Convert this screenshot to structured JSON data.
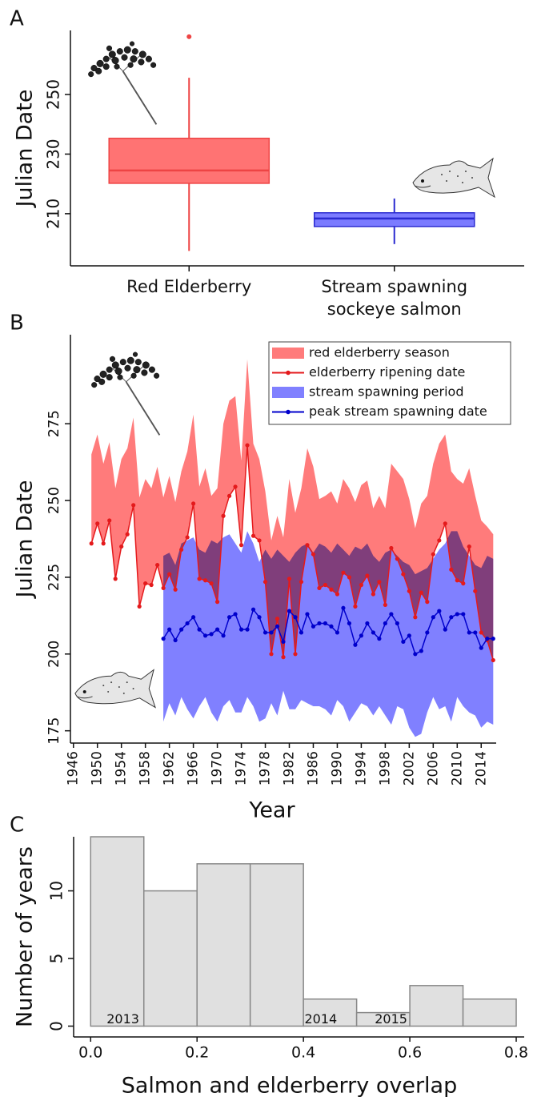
{
  "chart_data": [
    {
      "type": "box",
      "panel": "A",
      "ylabel": "Julian Date",
      "categories": [
        "Red Elderberry",
        "Stream spawning sockeye salmon"
      ],
      "colors": [
        "#ff7373",
        "#7b7bff"
      ],
      "edgecolors": [
        "#ee4444",
        "#2a2ad0"
      ],
      "boxes": [
        {
          "whislo": 197.5,
          "q1": 220.2,
          "med": 224.5,
          "q3": 235.3,
          "whishi": 255.6,
          "fliers": [
            269.4
          ]
        },
        {
          "whislo": 199.8,
          "q1": 205.7,
          "med": 208.4,
          "q3": 210.3,
          "whishi": 215.1
        }
      ],
      "ylim": [
        192.5,
        271.5
      ],
      "yticks": [
        210,
        230,
        250
      ]
    },
    {
      "type": "line",
      "panel": "B",
      "ylabel": "Julian Date",
      "xlabel": "Year",
      "legend": "upper right",
      "xlim": [
        1945.5,
        2016.5
      ],
      "xticks": [
        1946,
        1950,
        1954,
        1958,
        1962,
        1966,
        1970,
        1974,
        1978,
        1982,
        1986,
        1990,
        1994,
        1998,
        2002,
        2006,
        2010,
        2014
      ],
      "ylim": [
        171,
        304
      ],
      "yticks": [
        175,
        200,
        225,
        250,
        275
      ],
      "series": [
        {
          "name": "red elderberry season",
          "type": "area",
          "color": "#ff7b7b",
          "x": [
            1949,
            1950,
            1951,
            1952,
            1953,
            1954,
            1955,
            1956,
            1957,
            1958,
            1959,
            1960,
            1961,
            1962,
            1963,
            1964,
            1965,
            1966,
            1967,
            1968,
            1969,
            1970,
            1971,
            1972,
            1973,
            1974,
            1975,
            1976,
            1977,
            1978,
            1979,
            1980,
            1981,
            1982,
            1983,
            1984,
            1985,
            1986,
            1987,
            1988,
            1989,
            1990,
            1991,
            1992,
            1993,
            1994,
            1995,
            1996,
            1997,
            1998,
            1999,
            2000,
            2001,
            2002,
            2003,
            2004,
            2005,
            2006,
            2007,
            2008,
            2009,
            2010,
            2011,
            2012,
            2013,
            2014,
            2015,
            2016
          ],
          "low": [
            236,
            242.5,
            236,
            243.5,
            224.5,
            235,
            239,
            248.5,
            215.5,
            223,
            222.5,
            229,
            221.5,
            226,
            221,
            234,
            238,
            249,
            224.5,
            224,
            223,
            217,
            245,
            251.5,
            254.5,
            235.5,
            268,
            238.5,
            237,
            223.5,
            200,
            211.5,
            199,
            224.5,
            200,
            223.5,
            235.5,
            232.5,
            221.5,
            222.5,
            221,
            219.5,
            226.5,
            225,
            215.5,
            222.5,
            225.5,
            219.5,
            223.5,
            216,
            234.5,
            231,
            226,
            220.5,
            212,
            220,
            217,
            232.5,
            237,
            242.5,
            227.5,
            224,
            223,
            235,
            220.5,
            207,
            204.5,
            198
          ],
          "high": [
            265,
            271.5,
            262,
            269,
            254,
            263.5,
            267,
            277,
            251,
            257,
            254,
            261,
            251,
            258,
            249.5,
            259.5,
            266,
            278,
            254.5,
            260.5,
            251.5,
            254,
            275,
            282.5,
            284,
            263,
            296,
            268.5,
            263.5,
            253,
            237,
            245,
            238,
            257,
            246,
            254,
            267,
            261,
            250.5,
            251.5,
            253,
            249,
            257,
            254,
            249.5,
            255,
            256.5,
            247.5,
            251.5,
            247.5,
            262,
            259.5,
            257,
            250.5,
            241,
            249,
            251.5,
            262,
            268.5,
            271.5,
            259.5,
            257,
            255.5,
            260.5,
            251.5,
            243.5,
            241.5,
            239
          ]
        },
        {
          "name": "elderberry ripening date",
          "type": "line",
          "color": "#e41a1c",
          "x": [
            1949,
            1950,
            1951,
            1952,
            1953,
            1954,
            1955,
            1956,
            1957,
            1958,
            1959,
            1960,
            1961,
            1962,
            1963,
            1964,
            1965,
            1966,
            1967,
            1968,
            1969,
            1970,
            1971,
            1972,
            1973,
            1974,
            1975,
            1976,
            1977,
            1978,
            1979,
            1980,
            1981,
            1982,
            1983,
            1984,
            1985,
            1986,
            1987,
            1988,
            1989,
            1990,
            1991,
            1992,
            1993,
            1994,
            1995,
            1996,
            1997,
            1998,
            1999,
            2000,
            2001,
            2002,
            2003,
            2004,
            2005,
            2006,
            2007,
            2008,
            2009,
            2010,
            2011,
            2012,
            2013,
            2014,
            2015,
            2016
          ],
          "values": [
            236,
            242.5,
            236,
            243.5,
            224.5,
            235,
            239,
            248.5,
            215.5,
            223,
            222.5,
            229,
            221.5,
            226,
            221,
            234,
            238,
            249,
            224.5,
            224,
            223,
            217,
            245,
            251.5,
            254.5,
            235.5,
            268,
            238.5,
            237,
            223.5,
            200,
            211.5,
            199,
            224.5,
            200,
            223.5,
            235.5,
            232.5,
            221.5,
            222.5,
            221,
            219.5,
            226.5,
            225,
            215.5,
            222.5,
            225.5,
            219.5,
            223.5,
            216,
            234.5,
            231,
            226,
            220.5,
            212,
            220,
            217,
            232.5,
            237,
            242.5,
            227.5,
            224,
            223,
            235,
            220.5,
            207,
            204.5,
            198
          ]
        },
        {
          "name": "stream spawning period",
          "type": "area",
          "color": "#8080ff",
          "x": [
            1961,
            1962,
            1963,
            1964,
            1965,
            1966,
            1967,
            1968,
            1969,
            1970,
            1971,
            1972,
            1973,
            1974,
            1975,
            1976,
            1977,
            1978,
            1979,
            1980,
            1981,
            1982,
            1983,
            1984,
            1985,
            1986,
            1987,
            1988,
            1989,
            1990,
            1991,
            1992,
            1993,
            1994,
            1995,
            1996,
            1997,
            1998,
            1999,
            2000,
            2001,
            2002,
            2003,
            2004,
            2005,
            2006,
            2007,
            2008,
            2009,
            2010,
            2011,
            2012,
            2013,
            2014,
            2015,
            2016
          ],
          "low": [
            178,
            184,
            180,
            186,
            182,
            179,
            183,
            186,
            181,
            178,
            183,
            185,
            181,
            181,
            186,
            183,
            178,
            179,
            184,
            180,
            188,
            182,
            182,
            185,
            184,
            183,
            183,
            182,
            180,
            185,
            183,
            178,
            181,
            184,
            183,
            180,
            183,
            180,
            177,
            183,
            182,
            176,
            173,
            174,
            181,
            186,
            182,
            183,
            178,
            186,
            183,
            181,
            180,
            176,
            178,
            177
          ],
          "high": [
            232,
            233,
            229,
            236,
            237,
            238,
            234,
            233,
            237,
            236,
            238,
            239,
            236,
            233,
            240,
            236,
            230,
            234,
            231,
            234,
            232,
            230,
            233,
            235,
            236,
            233,
            236,
            235,
            233,
            236,
            234,
            232,
            235,
            234,
            236,
            232,
            230,
            233,
            234,
            232,
            230,
            229,
            226,
            227,
            228,
            231,
            234,
            236,
            240,
            240,
            235,
            232,
            229,
            228,
            232,
            231
          ]
        },
        {
          "name": "peak stream spawning date",
          "type": "line",
          "color": "#0000cc",
          "x": [
            1961,
            1962,
            1963,
            1964,
            1965,
            1966,
            1967,
            1968,
            1969,
            1970,
            1971,
            1972,
            1973,
            1974,
            1975,
            1976,
            1977,
            1978,
            1979,
            1980,
            1981,
            1982,
            1983,
            1984,
            1985,
            1986,
            1987,
            1988,
            1989,
            1990,
            1991,
            1992,
            1993,
            1994,
            1995,
            1996,
            1997,
            1998,
            1999,
            2000,
            2001,
            2002,
            2003,
            2004,
            2005,
            2006,
            2007,
            2008,
            2009,
            2010,
            2011,
            2012,
            2013,
            2014,
            2015,
            2016
          ],
          "values": [
            205,
            208,
            204.5,
            208,
            210,
            212,
            208,
            206,
            206.5,
            208,
            206,
            212,
            213,
            208,
            208,
            214.5,
            212,
            207,
            207,
            209,
            204,
            214,
            212,
            207,
            213,
            209,
            210,
            210,
            209,
            207,
            215,
            210,
            203,
            206,
            210,
            207,
            205,
            210,
            213,
            210,
            204,
            206,
            200,
            201,
            207,
            212,
            214,
            208,
            212,
            213,
            213,
            207,
            207,
            202,
            205,
            205
          ]
        }
      ]
    },
    {
      "type": "histogram",
      "panel": "C",
      "ylabel": "Number of years",
      "xlabel": "Salmon and elderberry overlap",
      "bins": [
        0,
        0.1,
        0.2,
        0.3,
        0.4,
        0.5,
        0.6,
        0.7,
        0.8
      ],
      "counts": [
        14,
        10,
        12,
        12,
        2,
        1,
        3,
        2
      ],
      "color": "#e0e0e0",
      "edgecolor": "#888888",
      "annotations": [
        {
          "text": "2013",
          "x": 0.03
        },
        {
          "text": "2014",
          "x": 0.402
        },
        {
          "text": "2015",
          "x": 0.534
        }
      ],
      "xlim": [
        -0.032,
        0.815
      ],
      "xticks": [
        {
          "value": 0,
          "label": "0.0"
        },
        0.2,
        0.4,
        0.6,
        0.8
      ],
      "ylim": [
        -0.8,
        14
      ],
      "yticks": [
        0,
        5,
        10
      ]
    }
  ]
}
